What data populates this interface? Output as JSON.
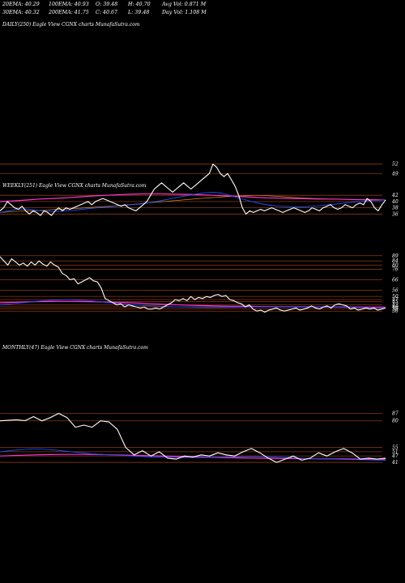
{
  "header": {
    "ema20": "20EMA: 40.29",
    "ema100": "100EMA: 40.93",
    "open": "O: 39.48",
    "high": "H: 40.70",
    "avgvol": "Avg Vol: 0.871 M",
    "ema30": "30EMA: 40.32",
    "ema200": "200EMA: 41.75",
    "close": "C: 40.67",
    "low": "L: 39.48",
    "dayvol": "Day Vol: 1.108 M"
  },
  "colors": {
    "background": "#000000",
    "price_line": "#ffffff",
    "ema_blue": "#1f4fff",
    "ema_magenta": "#ff33cc",
    "ema_orange": "#d98a1a",
    "ema_olive": "#8a8a55",
    "grid_line": "#8a3a1a"
  },
  "chart_data": [
    {
      "type": "line",
      "panel": "daily",
      "title": "DAILY(250) Eagle   View  CGNX  charts MunafaSutra.com",
      "series": [],
      "y_ticks": []
    },
    {
      "type": "line",
      "panel": "weekly",
      "title": "WEEKLY(251) Eagle   View  CGNX  charts MunafaSutra.com",
      "ylim": [
        34,
        54
      ],
      "y_ticks": [
        "52",
        "49",
        "42",
        "40",
        "38",
        "36"
      ],
      "series": [
        {
          "values": [
            37,
            38,
            40,
            39,
            38,
            37.5,
            38.5,
            37,
            36,
            37,
            36.5,
            35.5,
            37,
            36.5,
            35.5,
            37,
            38,
            37,
            38,
            37.5,
            38,
            38.5,
            39,
            39.5,
            40,
            39,
            40,
            40.5,
            41,
            40.5,
            40,
            39.5,
            39,
            38.5,
            39,
            38,
            37.5,
            37,
            38,
            39,
            40,
            42,
            44,
            45,
            46,
            45,
            44,
            43,
            44,
            45,
            46,
            45,
            44,
            45,
            46,
            47,
            48,
            49,
            52,
            51,
            49,
            48,
            49,
            47,
            45,
            42,
            38,
            36,
            37,
            36.5,
            37,
            37.5,
            37,
            37.5,
            38,
            37.5,
            37,
            36.5,
            37,
            37.5,
            38,
            37.5,
            37,
            36.5,
            37,
            38,
            37.5,
            37,
            38,
            38.5,
            39,
            38,
            37.5,
            38,
            39,
            38.5,
            38,
            39,
            39.5,
            39,
            41,
            40,
            38,
            37,
            39,
            40.5
          ]
        },
        {
          "values": [
            36.5,
            37,
            37.5,
            37.6,
            37.4,
            37,
            36.8,
            36.8,
            37,
            37.2,
            37.5,
            37.8,
            38,
            38.2,
            38.5,
            38.7,
            39,
            39.2,
            39.5,
            40,
            40.5,
            41,
            41.5,
            42,
            42.5,
            42.8,
            43,
            42.7,
            42,
            41.2,
            40.5,
            39.8,
            39.2,
            38.8,
            38.5,
            38.4,
            38.3,
            38.3,
            38.5,
            38.7,
            39,
            39.2,
            39.5,
            39.8,
            40,
            40.3,
            40.4,
            40.5
          ]
        },
        {
          "values": [
            40,
            40.2,
            40.5,
            40.8,
            41,
            41.2,
            41.5,
            41.8,
            42,
            42.2,
            42.4,
            42.5,
            42.5,
            42.4,
            42.3,
            42.2,
            42,
            41.8,
            41.6,
            41.4,
            41.2,
            41.1,
            41,
            40.9,
            40.8,
            40.8,
            40.7,
            40.6,
            40.6,
            40.5
          ]
        },
        {
          "values": [
            36.5,
            36.8,
            37,
            37.2,
            37.5,
            37.7,
            38,
            38.3,
            38.6,
            39,
            39.4,
            39.8,
            40.2,
            40.6,
            41,
            41.3,
            41.6,
            41.8,
            42,
            41.8,
            41.5,
            41.2,
            41,
            40.8,
            40.7,
            40.6,
            40.6,
            40.5
          ]
        }
      ]
    },
    {
      "type": "line",
      "panel": "weekly-lower",
      "title": "",
      "ylim": [
        30,
        95
      ],
      "y_ticks": [
        "89",
        "84",
        "80",
        "76",
        "66",
        "56",
        "50",
        "47",
        "45",
        "42",
        "40",
        "38",
        "36"
      ],
      "series": [
        {
          "values": [
            88,
            84,
            80,
            86,
            83,
            80,
            82,
            79,
            83,
            80,
            84,
            81,
            79,
            83,
            80,
            78,
            72,
            70,
            66,
            67,
            62,
            64,
            66,
            68,
            65,
            64,
            58,
            48,
            46,
            44,
            42,
            43,
            40,
            42,
            41,
            40,
            39,
            40,
            38,
            38,
            39,
            38,
            40,
            42,
            44,
            47,
            46,
            48,
            46,
            50,
            47,
            49,
            48,
            50,
            49,
            51,
            52,
            50,
            51,
            47,
            46,
            44,
            43,
            40,
            42,
            38,
            36,
            37,
            35,
            37,
            38,
            39,
            37,
            36,
            37,
            38,
            39,
            37,
            38,
            39,
            41,
            39,
            38,
            40,
            41,
            39,
            42,
            43,
            42,
            41,
            38,
            39,
            37,
            38,
            39,
            38,
            39,
            37,
            38,
            39
          ]
        },
        {
          "values": [
            42,
            43,
            44,
            45,
            46,
            46.5,
            47,
            46.5,
            46,
            45,
            44,
            43,
            42,
            41.5,
            41,
            40.5,
            40,
            39.8,
            39.6,
            39.5,
            39.5,
            39.6,
            39.8,
            40,
            40.2,
            40.3,
            40.4,
            40.5,
            40.3,
            40,
            39.8,
            39.6,
            39.5,
            39.3,
            39.2,
            39
          ]
        },
        {
          "values": [
            44,
            44.5,
            45,
            45.2,
            45.3,
            45.2,
            45,
            44.6,
            44.2,
            43.6,
            43,
            42.4,
            41.8,
            41.3,
            41,
            40.7,
            40.5,
            40.4,
            40.3,
            40.2,
            40.1,
            40,
            39.9,
            39.9,
            39.8,
            39.8
          ]
        }
      ]
    },
    {
      "type": "line",
      "panel": "monthly",
      "title": "MONTHLY(47) Eagle   View  CGNX  charts MunafaSutra.com",
      "ylim": [
        38,
        95
      ],
      "y_ticks": [
        "87",
        "80",
        "55",
        "51",
        "47",
        "41"
      ],
      "series": [
        {
          "values": [
            80,
            80.5,
            81,
            80.2,
            84,
            80,
            83,
            87,
            83,
            74,
            76,
            74,
            80,
            79,
            72,
            55,
            48,
            52,
            47,
            51,
            45,
            44,
            47,
            46,
            48,
            47,
            50,
            48,
            47,
            51,
            54,
            50,
            45,
            41,
            44,
            47,
            43,
            45,
            50,
            47,
            51,
            54,
            50,
            44,
            45,
            44,
            45
          ]
        },
        {
          "values": [
            51,
            52,
            53,
            53.5,
            53.5,
            53,
            52,
            51,
            50,
            49,
            48.5,
            48,
            47.5,
            47,
            46.5,
            46,
            45.8,
            45.6,
            45.5,
            45.5,
            45.6,
            45.8,
            46,
            46.2,
            46.4,
            46.4,
            46.2,
            46,
            45.6,
            45.2,
            44.8,
            44.5,
            44.2,
            44,
            43.8,
            43.6,
            43.4,
            43.2,
            43
          ]
        },
        {
          "values": [
            47,
            47.5,
            48,
            48.3,
            48.5,
            48.5,
            48.3,
            48,
            47.6,
            47.2,
            46.8,
            46.4,
            46,
            45.6,
            45.3,
            45,
            44.8,
            44.6,
            44.5,
            44.4,
            44.3,
            44.2,
            44.1,
            44
          ]
        }
      ]
    }
  ]
}
